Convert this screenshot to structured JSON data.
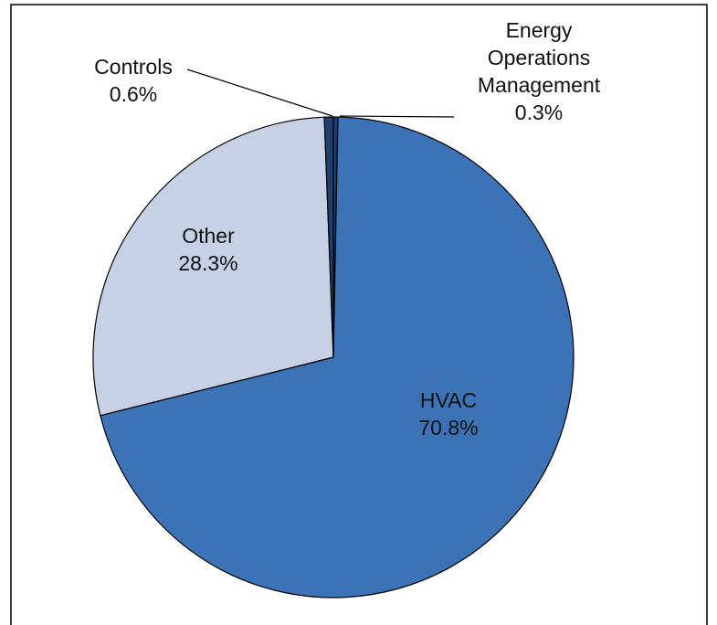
{
  "chart_data": {
    "type": "pie",
    "categories": [
      "Energy Operations Management",
      "HVAC",
      "Other",
      "Controls"
    ],
    "values": [
      0.3,
      70.8,
      28.3,
      0.6
    ],
    "value_labels": [
      "0.3%",
      "70.8%",
      "28.3%",
      "0.6%"
    ],
    "colors": [
      "#1f3f6e",
      "#3b73b6",
      "#c6d1e5",
      "#1f3f6e"
    ]
  }
}
